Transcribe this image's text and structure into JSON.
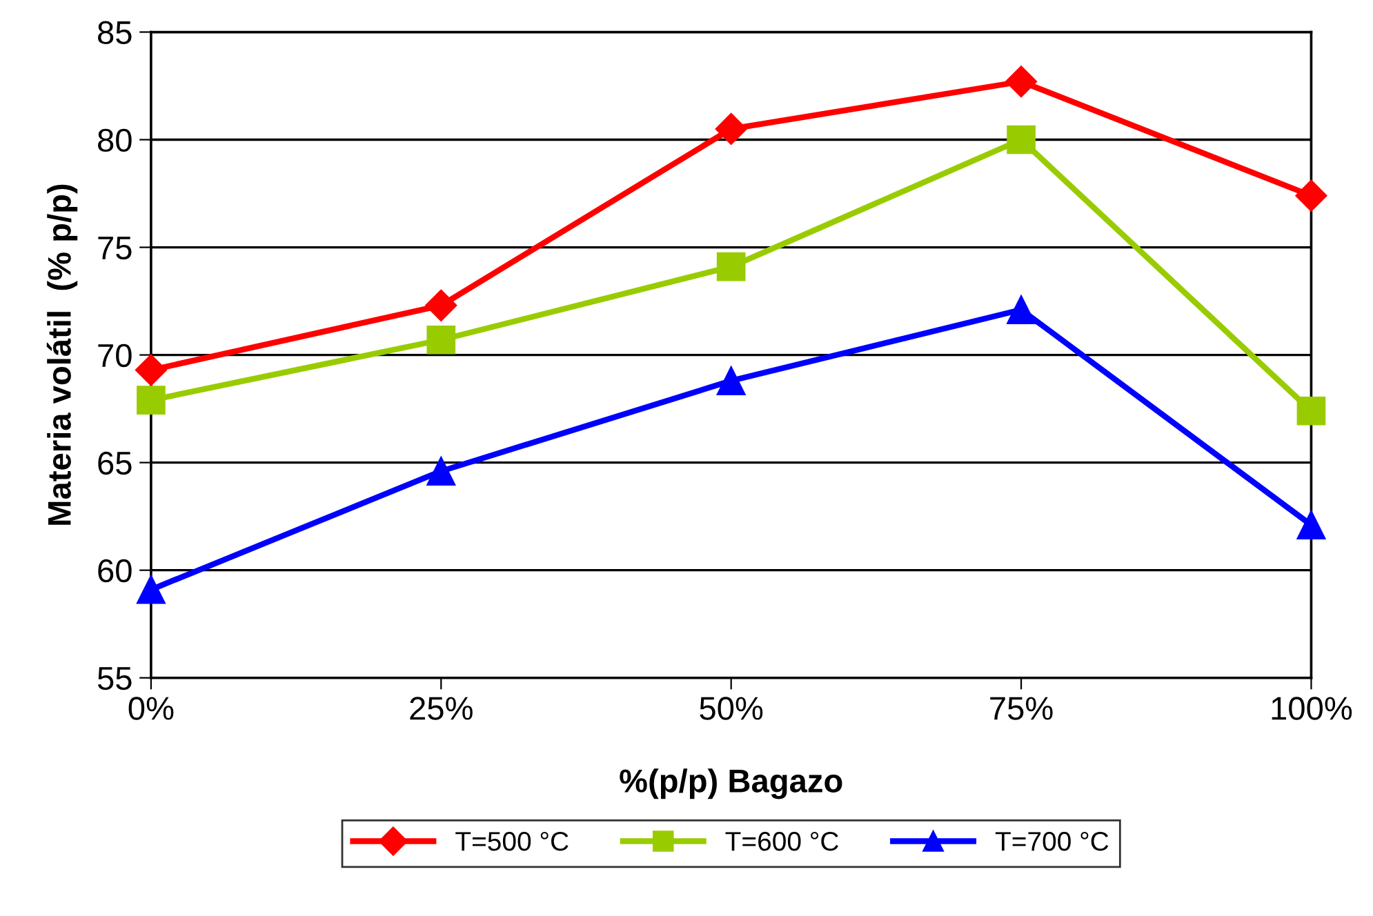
{
  "chart_data": {
    "type": "line",
    "xlabel": "%(p/p) Bagazo",
    "ylabel": "Materia volátil  (% p/p)",
    "categories": [
      "0%",
      "25%",
      "50%",
      "75%",
      "100%"
    ],
    "ylim": [
      55,
      85
    ],
    "yticks": [
      55,
      60,
      65,
      70,
      75,
      80,
      85
    ],
    "grid": "y",
    "legend": "bottom",
    "series": [
      {
        "name": "T=500 °C",
        "color": "#ff0000",
        "marker": "diamond",
        "values": [
          69.3,
          72.3,
          80.5,
          82.7,
          77.4
        ]
      },
      {
        "name": "T=600 °C",
        "color": "#99cc00",
        "marker": "square",
        "values": [
          67.9,
          70.7,
          74.1,
          80.0,
          67.4
        ]
      },
      {
        "name": "T=700 °C",
        "color": "#0000ff",
        "marker": "triangle",
        "values": [
          59.1,
          64.6,
          68.8,
          72.1,
          62.1
        ]
      }
    ]
  }
}
